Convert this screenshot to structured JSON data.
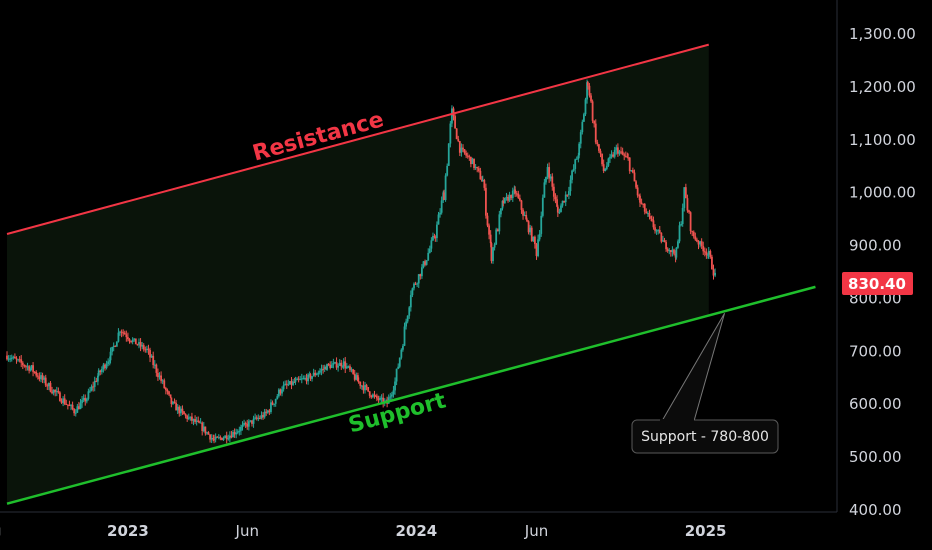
{
  "chart_data": {
    "type": "candlestick",
    "y_axis": {
      "range": [
        400,
        1330
      ],
      "ticks": [
        "1,300.00",
        "1,200.00",
        "1,100.00",
        "1,000.00",
        "900.00",
        "800.00",
        "700.00",
        "600.00",
        "500.00",
        "400.00"
      ],
      "tick_values": [
        1300,
        1200,
        1100,
        1000,
        900,
        800,
        700,
        600,
        500,
        400
      ]
    },
    "x_axis": {
      "range": [
        "2022-08-01",
        "2025-06-15"
      ],
      "ticks": [
        {
          "label": "ug",
          "date": "2022-08-01",
          "major": false
        },
        {
          "label": "2023",
          "date": "2023-01-01",
          "major": true
        },
        {
          "label": "Jun",
          "date": "2023-06-01",
          "major": false
        },
        {
          "label": "2024",
          "date": "2024-01-01",
          "major": true
        },
        {
          "label": "Jun",
          "date": "2024-06-01",
          "major": false
        },
        {
          "label": "2025",
          "date": "2025-01-01",
          "major": true
        }
      ]
    },
    "last_price": "830.40",
    "colors": {
      "up": "#26a69a",
      "down": "#ef5350",
      "resistance": "#f23645",
      "support": "#1fbf2c",
      "channel_fill": "#0a140a",
      "price_badge": "#f23645",
      "axis_text": "#d1d4dc",
      "grid_separator": "#2a2e39"
    },
    "series": [
      {
        "name": "Price",
        "kind": "close-path",
        "points": [
          [
            "2022-08-01",
            690
          ],
          [
            "2022-09-01",
            665
          ],
          [
            "2022-10-01",
            620
          ],
          [
            "2022-10-25",
            585
          ],
          [
            "2022-11-10",
            610
          ],
          [
            "2022-11-25",
            655
          ],
          [
            "2022-12-10",
            690
          ],
          [
            "2022-12-22",
            740
          ],
          [
            "2023-01-05",
            720
          ],
          [
            "2023-01-25",
            700
          ],
          [
            "2023-02-10",
            650
          ],
          [
            "2023-02-25",
            600
          ],
          [
            "2023-03-15",
            575
          ],
          [
            "2023-04-01",
            560
          ],
          [
            "2023-04-20",
            530
          ],
          [
            "2023-05-10",
            540
          ],
          [
            "2023-06-01",
            560
          ],
          [
            "2023-06-25",
            580
          ],
          [
            "2023-07-15",
            630
          ],
          [
            "2023-08-01",
            640
          ],
          [
            "2023-08-20",
            650
          ],
          [
            "2023-09-10",
            670
          ],
          [
            "2023-10-01",
            675
          ],
          [
            "2023-10-20",
            640
          ],
          [
            "2023-11-10",
            610
          ],
          [
            "2023-11-25",
            600
          ],
          [
            "2023-12-05",
            640
          ],
          [
            "2023-12-15",
            720
          ],
          [
            "2023-12-25",
            810
          ],
          [
            "2024-01-10",
            860
          ],
          [
            "2024-01-25",
            920
          ],
          [
            "2024-02-05",
            1000
          ],
          [
            "2024-02-15",
            1150
          ],
          [
            "2024-02-25",
            1080
          ],
          [
            "2024-03-10",
            1060
          ],
          [
            "2024-03-25",
            1020
          ],
          [
            "2024-04-05",
            880
          ],
          [
            "2024-04-20",
            980
          ],
          [
            "2024-05-05",
            1000
          ],
          [
            "2024-05-20",
            940
          ],
          [
            "2024-06-01",
            890
          ],
          [
            "2024-06-15",
            1050
          ],
          [
            "2024-06-28",
            960
          ],
          [
            "2024-07-10",
            1000
          ],
          [
            "2024-07-25",
            1080
          ],
          [
            "2024-08-05",
            1210
          ],
          [
            "2024-08-15",
            1100
          ],
          [
            "2024-08-25",
            1040
          ],
          [
            "2024-09-10",
            1080
          ],
          [
            "2024-09-25",
            1060
          ],
          [
            "2024-10-10",
            980
          ],
          [
            "2024-10-25",
            940
          ],
          [
            "2024-11-10",
            900
          ],
          [
            "2024-11-25",
            880
          ],
          [
            "2024-12-05",
            1000
          ],
          [
            "2024-12-15",
            920
          ],
          [
            "2024-12-25",
            900
          ],
          [
            "2025-01-05",
            880
          ],
          [
            "2025-01-15",
            830
          ]
        ]
      }
    ],
    "annotations": [
      {
        "name": "resistance-line",
        "text": "Resistance",
        "from": [
          "2022-08-01",
          920
        ],
        "to": [
          "2025-01-05",
          1278
        ]
      },
      {
        "name": "support-line",
        "text": "Support",
        "from": [
          "2022-08-01",
          410
        ],
        "to": [
          "2025-05-20",
          820
        ]
      },
      {
        "name": "support-callout",
        "text": "Support - 780-800"
      }
    ]
  }
}
